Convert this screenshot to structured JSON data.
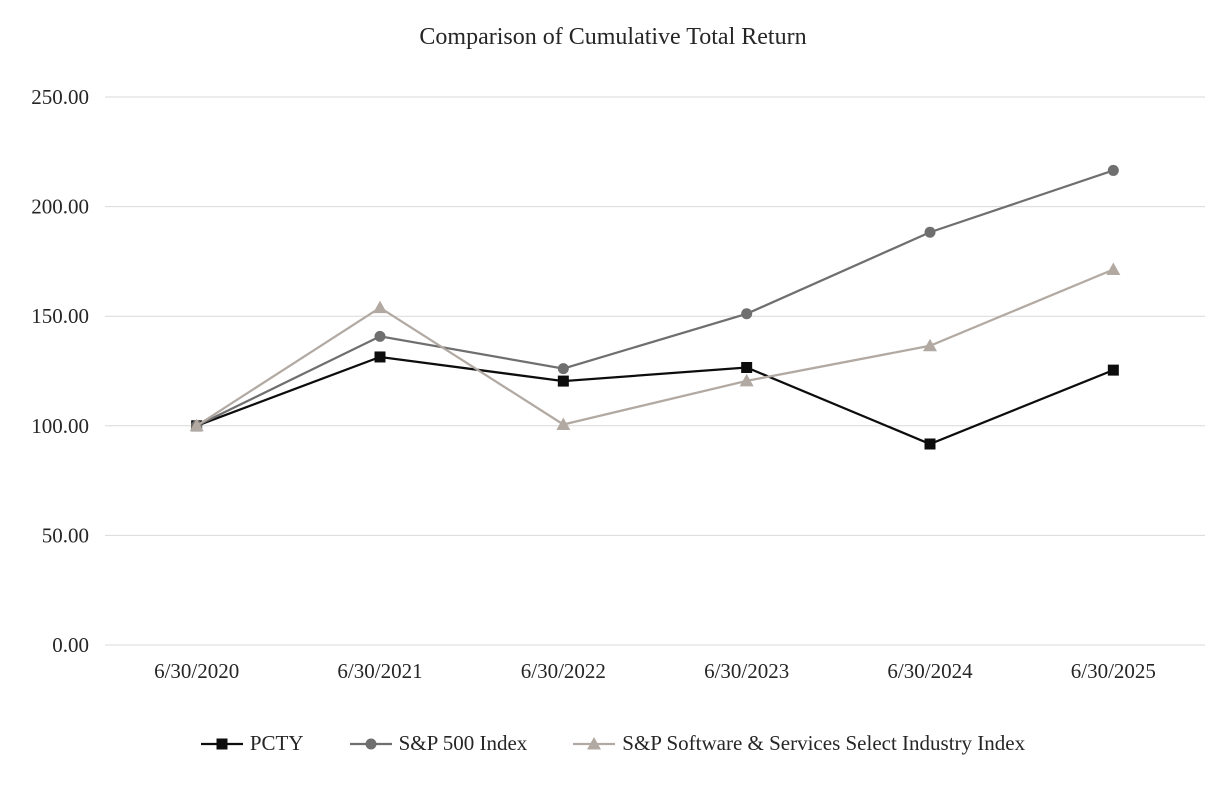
{
  "title": "Comparison of Cumulative Total Return",
  "chart_data": {
    "type": "line",
    "x": [
      "6/30/2020",
      "6/30/2021",
      "6/30/2022",
      "6/30/2023",
      "6/30/2024",
      "6/30/2025"
    ],
    "series": [
      {
        "name": "PCTY",
        "marker": "square",
        "color": "#0d0d0d",
        "values": [
          100.0,
          131.4,
          120.4,
          126.6,
          91.7,
          125.4
        ]
      },
      {
        "name": "S&P 500 Index",
        "marker": "circle",
        "color": "#6f6f6f",
        "values": [
          100.0,
          140.8,
          126.1,
          151.1,
          188.3,
          216.5
        ]
      },
      {
        "name": "S&P Software & Services Select Industry Index",
        "marker": "triangle",
        "color": "#b2aaa2",
        "values": [
          100.0,
          153.9,
          100.6,
          120.5,
          136.5,
          171.3
        ]
      }
    ],
    "ylim": [
      0,
      250
    ],
    "ytick_step": 50,
    "ytick_labels": [
      "0.00",
      "50.00",
      "100.00",
      "150.00",
      "200.00",
      "250.00"
    ],
    "grid": true,
    "legend_position": "bottom",
    "xlabel": "",
    "ylabel": ""
  },
  "colors": {
    "gridline": "#d9d9d9",
    "background": "#ffffff",
    "text": "#262626"
  }
}
